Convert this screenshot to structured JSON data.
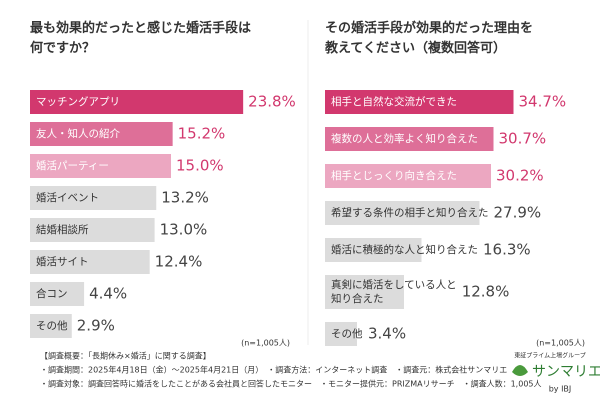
{
  "chart_data": [
    {
      "type": "bar",
      "orientation": "horizontal",
      "title": "最も効果的だったと感じた婚活手段は\n何ですか？",
      "categories": [
        "マッチングアプリ",
        "友人・知人の紹介",
        "婚活パーティー",
        "婚活イベント",
        "結婚相談所",
        "婚活サイト",
        "合コン",
        "その他"
      ],
      "values": [
        23.8,
        15.2,
        15.0,
        13.2,
        13.0,
        12.4,
        4.4,
        2.9
      ],
      "value_labels": [
        "23.8%",
        "15.2%",
        "15.0%",
        "13.2%",
        "13.0%",
        "12.4%",
        "4.4%",
        "2.9%"
      ],
      "colors": [
        "#d2386e",
        "#de6f98",
        "#eca7c1",
        "#dcdcdc",
        "#dcdcdc",
        "#dcdcdc",
        "#dcdcdc",
        "#dcdcdc"
      ],
      "note": "(n=1,005人)"
    },
    {
      "type": "bar",
      "orientation": "horizontal",
      "title": "その婚活手段が効果的だった理由を\n教えてください（複数回答可）",
      "categories": [
        "相手と自然な交流ができた",
        "複数の人と効率よく知り合えた",
        "相手とじっくり向き合えた",
        "希望する条件の相手と知り合えた",
        "婚活に積極的な人と知り合えた",
        "真剣に婚活をしている人と\n知り合えた",
        "その他"
      ],
      "values": [
        34.7,
        30.7,
        30.2,
        27.9,
        16.3,
        12.8,
        3.4
      ],
      "value_labels": [
        "34.7%",
        "30.7%",
        "30.2%",
        "27.9%",
        "16.3%",
        "12.8%",
        "3.4%"
      ],
      "colors": [
        "#d2386e",
        "#de6f98",
        "#eca7c1",
        "#dcdcdc",
        "#dcdcdc",
        "#dcdcdc",
        "#dcdcdc"
      ],
      "note": "(n=1,005人)"
    }
  ],
  "footer": [
    "【調査概要：「長期休み×婚活」に関する調査】",
    "・調査期間：2025年4月18日（金）～2025年4月21日（月）　・調査方法：インターネット調査　・調査元：株式会社サンマリエ",
    "・調査対象：調査回答時に婚活をしたことがある会社員と回答したモニター　・モニター提供元：PRIZMAリサーチ　・調査人数：1,005人"
  ],
  "logo": {
    "group": "東証プライム上場グループ",
    "brand": "サンマリエ",
    "by": "by IBJ"
  }
}
